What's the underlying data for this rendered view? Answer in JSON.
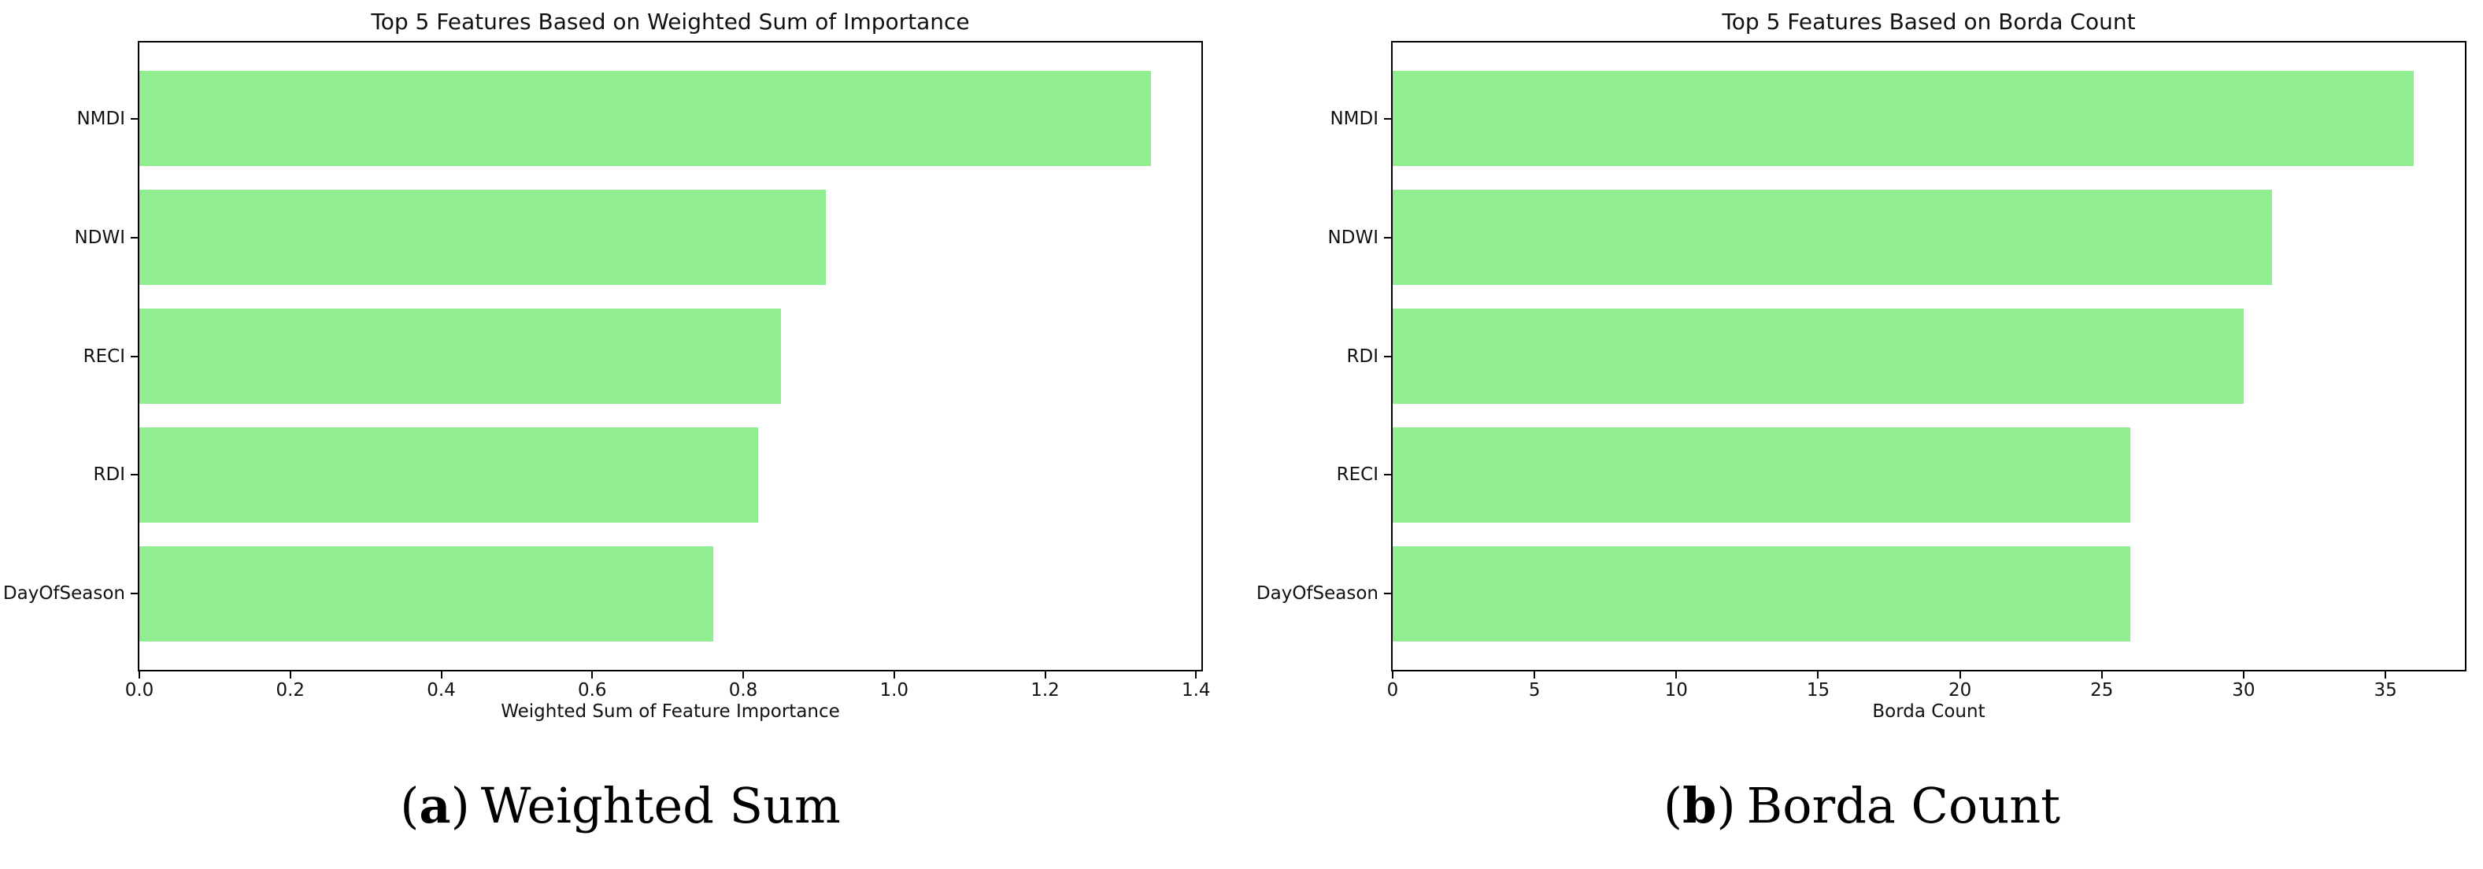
{
  "bar_color": "#90EE90",
  "text_color": "#111111",
  "chart_data": [
    {
      "type": "bar",
      "orientation": "horizontal",
      "title": "Top 5 Features Based on Weighted Sum of Importance",
      "xlabel": "Weighted Sum of Feature Importance",
      "ylabel": "",
      "categories": [
        "NMDI",
        "NDWI",
        "RECI",
        "RDI",
        "DayOfSeason"
      ],
      "values": [
        1.34,
        0.91,
        0.85,
        0.82,
        0.76
      ],
      "xlim": [
        0,
        1.407
      ],
      "xticks": [
        0.0,
        0.2,
        0.4,
        0.6,
        0.8,
        1.0,
        1.2,
        1.4
      ],
      "xtick_labels": [
        "0.0",
        "0.2",
        "0.4",
        "0.6",
        "0.8",
        "1.0",
        "1.2",
        "1.4"
      ],
      "grid": false,
      "legend": null,
      "bar_height_fraction": 0.8
    },
    {
      "type": "bar",
      "orientation": "horizontal",
      "title": "Top 5 Features Based on Borda Count",
      "xlabel": "Borda Count",
      "ylabel": "",
      "categories": [
        "NMDI",
        "NDWI",
        "RDI",
        "RECI",
        "DayOfSeason"
      ],
      "values": [
        36,
        31,
        30,
        26,
        26
      ],
      "xlim": [
        0,
        37.8
      ],
      "xticks": [
        0,
        5,
        10,
        15,
        20,
        25,
        30,
        35
      ],
      "xtick_labels": [
        "0",
        "5",
        "10",
        "15",
        "20",
        "25",
        "30",
        "35"
      ],
      "grid": false,
      "legend": null,
      "bar_height_fraction": 0.8
    }
  ],
  "captions": [
    {
      "open": "(",
      "marker": "a",
      "close": ")",
      "label": "Weighted Sum"
    },
    {
      "open": "(",
      "marker": "b",
      "close": ")",
      "label": "Borda Count"
    }
  ]
}
